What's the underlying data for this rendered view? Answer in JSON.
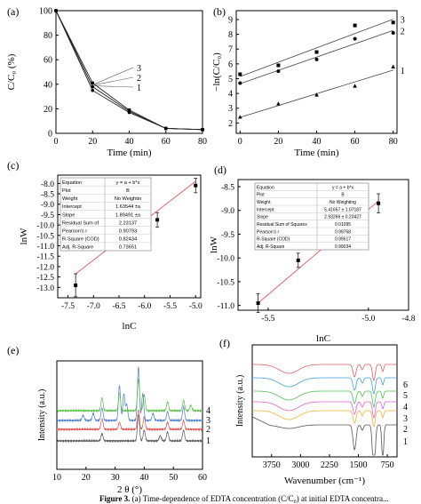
{
  "caption": {
    "figure": "Figure 3.",
    "text": "(a) Time-dependence of EDTA concentration (C/C₀) at initial EDTA concentra..."
  },
  "chart_data": [
    {
      "panel": "(a)",
      "type": "line",
      "xlabel": "Time (min)",
      "ylabel": "C/C₀ (%)",
      "xlim": [
        0,
        80
      ],
      "ylim": [
        0,
        100
      ],
      "xticks": [
        "0",
        "20",
        "40",
        "60",
        "80"
      ],
      "yticks": [
        "0",
        "20",
        "40",
        "60",
        "80",
        "100"
      ],
      "x": [
        0,
        20,
        40,
        60,
        80
      ],
      "series": [
        {
          "name": "1",
          "values": [
            100,
            35,
            17,
            4,
            3
          ]
        },
        {
          "name": "2",
          "values": [
            100,
            38,
            18,
            4,
            3
          ]
        },
        {
          "name": "3",
          "values": [
            100,
            41,
            19,
            4,
            3
          ]
        }
      ]
    },
    {
      "panel": "(b)",
      "type": "scatter",
      "xlabel": "Time (min)",
      "ylabel": "−ln(C/C₀)",
      "xlim": [
        0,
        80
      ],
      "ylim": [
        0,
        9
      ],
      "xticks": [
        "0",
        "20",
        "40",
        "60",
        "80"
      ],
      "yticks": [
        "0",
        "1",
        "2",
        "3",
        "4",
        "5",
        "6",
        "7",
        "8",
        "9"
      ],
      "x": [
        0,
        20,
        40,
        60,
        80
      ],
      "series": [
        {
          "name": "1",
          "marker": "triangle",
          "values": [
            2.4,
            3.3,
            3.9,
            4.5,
            5.8
          ]
        },
        {
          "name": "2",
          "marker": "circle",
          "values": [
            4.7,
            5.5,
            6.3,
            7.7,
            8.1
          ]
        },
        {
          "name": "3",
          "marker": "square",
          "values": [
            5.3,
            5.9,
            6.8,
            8.6,
            8.8
          ]
        }
      ]
    },
    {
      "panel": "(c)",
      "type": "scatter",
      "xlabel": "lnC",
      "ylabel": "lnW",
      "xlim": [
        -7.7,
        -4.9
      ],
      "ylim": [
        -13.5,
        -7.6
      ],
      "xticks": [
        "-7.5",
        "-7.0",
        "-6.5",
        "-6.0",
        "-5.5",
        "-5.0"
      ],
      "yticks": [
        "-13.0",
        "-12.5",
        "-12.0",
        "-11.5",
        "-11.0",
        "-10.5",
        "-10.0",
        "-9.5",
        "-9.0",
        "-8.5",
        "-8.0"
      ],
      "x": [
        -7.35,
        -5.75,
        -5.0
      ],
      "values": [
        -12.9,
        -9.75,
        -8.1
      ],
      "errors": [
        0.55,
        0.35,
        0.35
      ],
      "fit": {
        "x": [
          -7.35,
          -5.0
        ],
        "y": [
          -12.35,
          -7.9
        ]
      },
      "stats_table": [
        [
          "Equation",
          "y = a + b*x"
        ],
        [
          "Plot",
          "B"
        ],
        [
          "Weight",
          "No Weightin"
        ],
        [
          "Intercept",
          "1.63544 ±a"
        ],
        [
          "Slope",
          "1.89491 ±a"
        ],
        [
          "Residual Sum of",
          "2.23137"
        ],
        [
          "Pearson's r",
          "0.90793"
        ],
        [
          "R-Square (COD)",
          "0.82434"
        ],
        [
          "Adj. R-Square",
          "0.73651"
        ]
      ]
    },
    {
      "panel": "(d)",
      "type": "scatter",
      "xlabel": "lnC",
      "ylabel": "lnW",
      "xlim": [
        -5.65,
        -4.8
      ],
      "ylim": [
        -11.1,
        -8.35
      ],
      "xticks": [
        "-5.5",
        "-5.0",
        "-4.8"
      ],
      "yticks": [
        "-11.0",
        "-10.5",
        "-10.0",
        "-9.5",
        "-9.0",
        "-8.5"
      ],
      "x": [
        -5.55,
        -5.35,
        -4.95
      ],
      "values": [
        -10.95,
        -10.05,
        -8.85
      ],
      "errors": [
        0.2,
        0.15,
        0.2
      ],
      "fit": {
        "x": [
          -5.55,
          -4.95
        ],
        "y": [
          -10.95,
          -8.8
        ]
      },
      "stats_table": [
        [
          "Equation",
          "y = a + b*x"
        ],
        [
          "Plot",
          "B"
        ],
        [
          "Weight",
          "No Weighting"
        ],
        [
          "Intercept",
          "5.41657 ± 1.07187"
        ],
        [
          "Slope",
          "2.93266 ± 0.20427"
        ],
        [
          "Residual Sum of Squares",
          "0.01095"
        ],
        [
          "Pearson's r",
          "0.99758"
        ],
        [
          "R-Square (COD)",
          "0.99517"
        ],
        [
          "Adj. R-Square",
          "0.99034"
        ]
      ]
    },
    {
      "panel": "(e)",
      "type": "line",
      "xlabel": "2 θ (°)",
      "ylabel": "Intensity (a.u.)",
      "xlim": [
        10,
        60
      ],
      "xticks": [
        "10",
        "20",
        "30",
        "40",
        "50",
        "60"
      ],
      "series": [
        {
          "name": "1",
          "color": "#555555"
        },
        {
          "name": "2",
          "color": "#e05050"
        },
        {
          "name": "3",
          "color": "#4a7fd0"
        },
        {
          "name": "4",
          "color": "#55c040"
        }
      ]
    },
    {
      "panel": "(f)",
      "type": "line",
      "xlabel": "Wavenumber (cm⁻¹)",
      "ylabel": "Intensity (a.u.)",
      "xlim": [
        4250,
        500
      ],
      "xticks": [
        "3750",
        "3000",
        "2250",
        "1500",
        "750"
      ],
      "series": [
        {
          "name": "1",
          "color": "#555555"
        },
        {
          "name": "2",
          "color": "#f0b030"
        },
        {
          "name": "3",
          "color": "#e060d0"
        },
        {
          "name": "4",
          "color": "#50c050"
        },
        {
          "name": "5",
          "color": "#40a0e0"
        },
        {
          "name": "6",
          "color": "#e06060"
        }
      ]
    }
  ]
}
